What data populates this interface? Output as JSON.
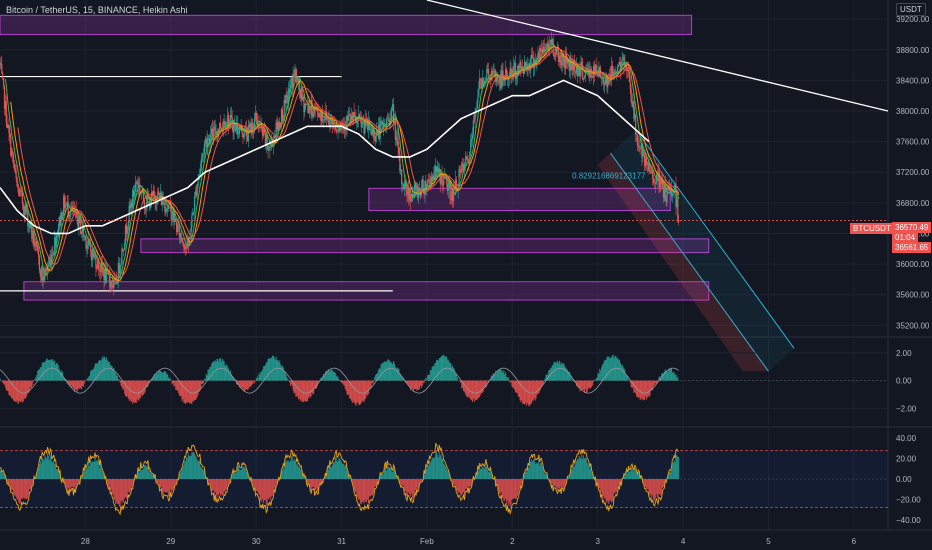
{
  "header": {
    "title": "Bitcoin / TetherUS, 15, BINANCE, Heikin Ashi",
    "currency": "USDT"
  },
  "price_badges": {
    "symbol": "BTCUSDT",
    "last_price": "36570.49",
    "countdown": "01:04",
    "low_price": "36561.65"
  },
  "annotation": "0.829216869123177",
  "colors": {
    "background": "#131722",
    "bull": "#26a69a",
    "bear": "#ef5350",
    "zone_fill": "#7b2f8f",
    "zone_stroke": "#b03fc8",
    "channel": "#2ab0d4",
    "osc_line": "#e8a317"
  },
  "chart_data": [
    {
      "type": "candlestick",
      "panel": "price",
      "y_ticks": [
        "39200.00",
        "38800.00",
        "38400.00",
        "38000.00",
        "37600.00",
        "37200.00",
        "36800.00",
        "36400.00",
        "36000.00",
        "35600.00",
        "35200.00"
      ],
      "ylim": [
        35100,
        39450
      ],
      "x_ticks": [
        "28",
        "29",
        "30",
        "31",
        "Feb",
        "2",
        "3",
        "4",
        "5",
        "6"
      ],
      "x_tick_days": [
        0.6,
        1.6,
        2.6,
        3.6,
        4.6,
        5.6,
        6.6,
        7.6,
        8.6,
        9.6
      ],
      "xlim": [
        -0.4,
        10.0
      ],
      "last_day": 7.55,
      "price_path": [
        [
          -0.4,
          38600
        ],
        [
          -0.3,
          37700
        ],
        [
          -0.2,
          37000
        ],
        [
          -0.1,
          36700
        ],
        [
          0.0,
          36300
        ],
        [
          0.1,
          35800
        ],
        [
          0.2,
          36100
        ],
        [
          0.35,
          36800
        ],
        [
          0.5,
          36600
        ],
        [
          0.65,
          36200
        ],
        [
          0.8,
          35900
        ],
        [
          0.95,
          35700
        ],
        [
          1.1,
          36600
        ],
        [
          1.2,
          37100
        ],
        [
          1.3,
          36800
        ],
        [
          1.45,
          36900
        ],
        [
          1.6,
          36700
        ],
        [
          1.7,
          36400
        ],
        [
          1.8,
          36200
        ],
        [
          1.9,
          37000
        ],
        [
          2.0,
          37600
        ],
        [
          2.1,
          37700
        ],
        [
          2.25,
          37900
        ],
        [
          2.35,
          37800
        ],
        [
          2.5,
          37700
        ],
        [
          2.6,
          37900
        ],
        [
          2.75,
          37500
        ],
        [
          2.85,
          37800
        ],
        [
          2.95,
          38100
        ],
        [
          3.05,
          38500
        ],
        [
          3.15,
          38100
        ],
        [
          3.3,
          38000
        ],
        [
          3.45,
          37900
        ],
        [
          3.55,
          37800
        ],
        [
          3.7,
          37900
        ],
        [
          3.9,
          37800
        ],
        [
          4.0,
          37700
        ],
        [
          4.1,
          37800
        ],
        [
          4.2,
          38000
        ],
        [
          4.3,
          37100
        ],
        [
          4.4,
          36900
        ],
        [
          4.55,
          37000
        ],
        [
          4.7,
          37200
        ],
        [
          4.8,
          37100
        ],
        [
          4.9,
          36900
        ],
        [
          5.0,
          37200
        ],
        [
          5.1,
          37400
        ],
        [
          5.2,
          38300
        ],
        [
          5.3,
          38500
        ],
        [
          5.45,
          38400
        ],
        [
          5.6,
          38500
        ],
        [
          5.75,
          38600
        ],
        [
          5.9,
          38700
        ],
        [
          6.05,
          38900
        ],
        [
          6.15,
          38700
        ],
        [
          6.3,
          38600
        ],
        [
          6.45,
          38500
        ],
        [
          6.6,
          38500
        ],
        [
          6.7,
          38400
        ],
        [
          6.85,
          38600
        ],
        [
          6.95,
          38600
        ],
        [
          7.05,
          37700
        ],
        [
          7.15,
          37300
        ],
        [
          7.3,
          37100
        ],
        [
          7.4,
          36900
        ],
        [
          7.5,
          37000
        ],
        [
          7.55,
          36570
        ]
      ],
      "ema_path": [
        [
          -0.4,
          37000
        ],
        [
          -0.2,
          36700
        ],
        [
          0.0,
          36500
        ],
        [
          0.2,
          36400
        ],
        [
          0.4,
          36400
        ],
        [
          0.6,
          36500
        ],
        [
          0.8,
          36500
        ],
        [
          1.0,
          36600
        ],
        [
          1.2,
          36700
        ],
        [
          1.4,
          36800
        ],
        [
          1.6,
          36900
        ],
        [
          1.8,
          37000
        ],
        [
          2.0,
          37200
        ],
        [
          2.2,
          37300
        ],
        [
          2.4,
          37400
        ],
        [
          2.6,
          37500
        ],
        [
          2.8,
          37600
        ],
        [
          3.0,
          37700
        ],
        [
          3.2,
          37800
        ],
        [
          3.4,
          37800
        ],
        [
          3.6,
          37800
        ],
        [
          3.8,
          37700
        ],
        [
          4.0,
          37500
        ],
        [
          4.2,
          37400
        ],
        [
          4.4,
          37400
        ],
        [
          4.6,
          37500
        ],
        [
          4.8,
          37700
        ],
        [
          5.0,
          37900
        ],
        [
          5.2,
          38000
        ],
        [
          5.4,
          38100
        ],
        [
          5.6,
          38200
        ],
        [
          5.8,
          38200
        ],
        [
          6.0,
          38300
        ],
        [
          6.2,
          38400
        ],
        [
          6.4,
          38300
        ],
        [
          6.6,
          38200
        ],
        [
          6.8,
          38000
        ],
        [
          7.0,
          37800
        ],
        [
          7.2,
          37600
        ]
      ],
      "levels": [
        {
          "price": 38450,
          "from_day": -0.4,
          "to_day": 3.6
        },
        {
          "price": 35650,
          "from_day": -0.4,
          "to_day": 4.2
        }
      ],
      "zones": [
        {
          "low": 39000,
          "high": 39250,
          "from_day": -0.4,
          "to_day": 7.7
        },
        {
          "low": 36700,
          "high": 36990,
          "from_day": 3.92,
          "to_day": 7.45
        },
        {
          "low": 36150,
          "high": 36330,
          "from_day": 1.25,
          "to_day": 7.9
        },
        {
          "low": 35530,
          "high": 35770,
          "from_day": -0.12,
          "to_day": 7.9
        }
      ],
      "trendlines": [
        {
          "from": [
            4.6,
            39450
          ],
          "to": [
            10.0,
            38000
          ]
        }
      ],
      "channel": {
        "upper": [
          [
            7.05,
            37750
          ],
          [
            8.9,
            34900
          ]
        ],
        "lower": [
          [
            6.75,
            37450
          ],
          [
            8.6,
            34600
          ]
        ]
      }
    },
    {
      "type": "histogram",
      "panel": "macd",
      "y_ticks": [
        "2.00",
        "0.00",
        "−2.00"
      ],
      "ylim": [
        -3.2,
        3.0
      ]
    },
    {
      "type": "histogram",
      "panel": "oscillator",
      "y_ticks": [
        "40.00",
        "20.00",
        "0.00",
        "−20.00",
        "−40.00"
      ],
      "ylim": [
        -48,
        48
      ]
    }
  ]
}
